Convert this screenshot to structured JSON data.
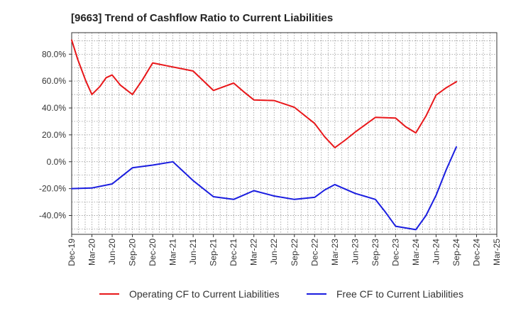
{
  "chart_data": {
    "type": "line",
    "title": "[9663]  Trend of Cashflow Ratio to Current Liabilities",
    "x_tick_labels": [
      "Dec-19",
      "Mar-20",
      "Jun-20",
      "Sep-20",
      "Dec-20",
      "Mar-21",
      "Jun-21",
      "Sep-21",
      "Dec-21",
      "Mar-22",
      "Jun-22",
      "Sep-22",
      "Dec-22",
      "Mar-23",
      "Jun-23",
      "Sep-23",
      "Dec-23",
      "Mar-24",
      "Jun-24",
      "Sep-24",
      "Dec-24",
      "Mar-25"
    ],
    "y_ticks": [
      -40,
      -20,
      0,
      20,
      40,
      60,
      80
    ],
    "y_tick_labels": [
      "-40.0%",
      "-20.0%",
      "0.0%",
      "20.0%",
      "40.0%",
      "60.0%",
      "80.0%"
    ],
    "ylim": [
      -54,
      96
    ],
    "grid": true,
    "legend_position": "bottom",
    "series": [
      {
        "name": "Operating CF to Current Liabilities",
        "color": "#e8171a",
        "points": [
          [
            0,
            90.5
          ],
          [
            0.3,
            76
          ],
          [
            0.7,
            60
          ],
          [
            1,
            50
          ],
          [
            1.4,
            56
          ],
          [
            1.7,
            62.5
          ],
          [
            2,
            64.5
          ],
          [
            2.4,
            57
          ],
          [
            3,
            50
          ],
          [
            3.5,
            61
          ],
          [
            4,
            73.5
          ],
          [
            5,
            70.5
          ],
          [
            6,
            67.5
          ],
          [
            7,
            53
          ],
          [
            8,
            58.5
          ],
          [
            8.5,
            52
          ],
          [
            9,
            46
          ],
          [
            10,
            45.5
          ],
          [
            11,
            40.5
          ],
          [
            12,
            28.5
          ],
          [
            12.5,
            18.5
          ],
          [
            13,
            10.5
          ],
          [
            13.5,
            16
          ],
          [
            14,
            22
          ],
          [
            15,
            33
          ],
          [
            16,
            32.5
          ],
          [
            16.5,
            26
          ],
          [
            17,
            21.5
          ],
          [
            17.5,
            34
          ],
          [
            18,
            49.5
          ],
          [
            18.5,
            55
          ],
          [
            19,
            59.5
          ]
        ]
      },
      {
        "name": "Free CF to Current Liabilities",
        "color": "#1a1de0",
        "points": [
          [
            0,
            -20
          ],
          [
            1,
            -19.5
          ],
          [
            2,
            -16.5
          ],
          [
            3,
            -4.5
          ],
          [
            4,
            -2.5
          ],
          [
            5,
            0
          ],
          [
            6,
            -14
          ],
          [
            7,
            -26
          ],
          [
            8,
            -28
          ],
          [
            9,
            -21.5
          ],
          [
            10,
            -25.5
          ],
          [
            11,
            -28
          ],
          [
            12,
            -26.5
          ],
          [
            12.5,
            -21
          ],
          [
            13,
            -17
          ],
          [
            14,
            -23.5
          ],
          [
            15,
            -28
          ],
          [
            15.5,
            -37.5
          ],
          [
            16,
            -48
          ],
          [
            17,
            -50.5
          ],
          [
            17.5,
            -40
          ],
          [
            18,
            -25
          ],
          [
            18.5,
            -6
          ],
          [
            19,
            11
          ]
        ]
      }
    ]
  }
}
